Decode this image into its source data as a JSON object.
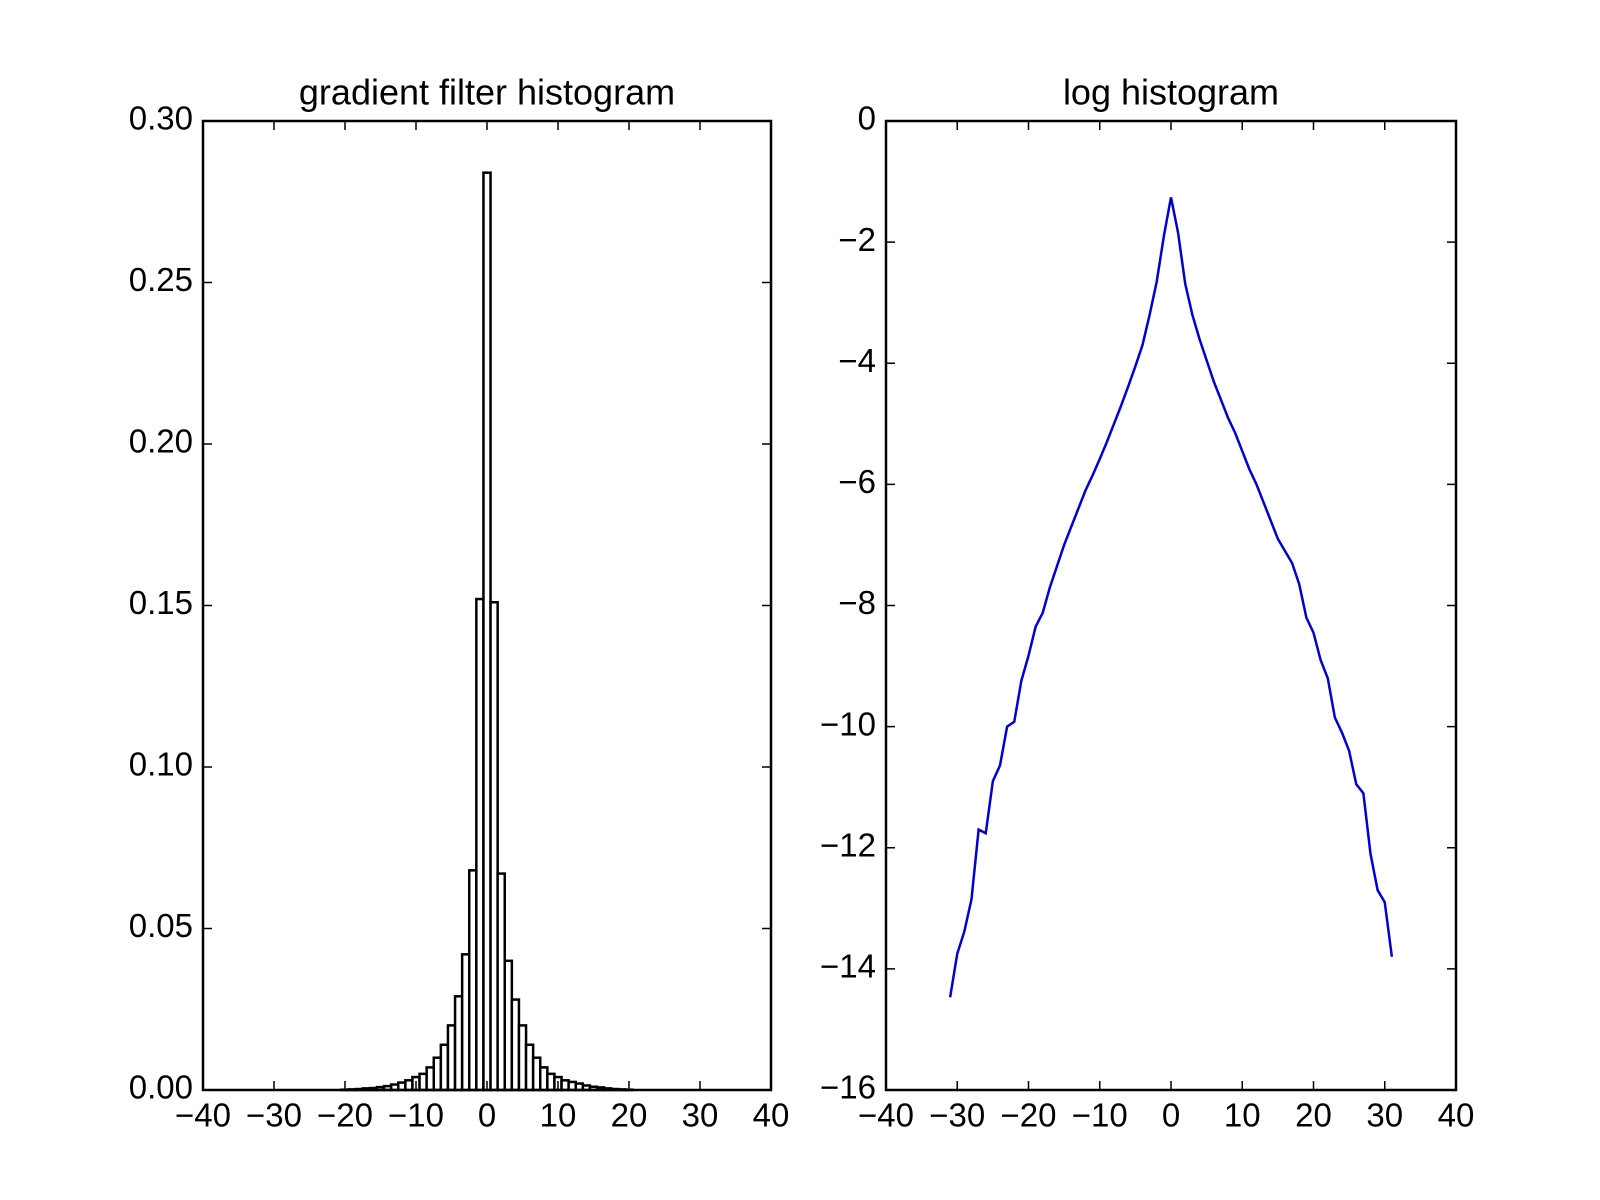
{
  "chart_data": [
    {
      "type": "histogram",
      "title": "gradient filter histogram",
      "color": "#ffffff",
      "edgecolor": "#000000",
      "bins": [
        -31.5,
        -30.5,
        -29.5,
        -28.5,
        -27.5,
        -26.5,
        -25.5,
        -24.5,
        -23.5,
        -22.5,
        -21.5,
        -20.5,
        -19.5,
        -18.5,
        -17.5,
        -16.5,
        -15.5,
        -14.5,
        -13.5,
        -12.5,
        -11.5,
        -10.5,
        -9.5,
        -8.5,
        -7.5,
        -6.5,
        -5.5,
        -4.5,
        -3.5,
        -2.5,
        -1.5,
        -0.5,
        0.5,
        1.5,
        2.5,
        3.5,
        4.5,
        5.5,
        6.5,
        7.5,
        8.5,
        9.5,
        10.5,
        11.5,
        12.5,
        13.5,
        14.5,
        15.5,
        16.5,
        17.5,
        18.5,
        19.5,
        20.5,
        21.5,
        22.5,
        23.5,
        24.5,
        25.5,
        26.5,
        27.5,
        28.5,
        29.5,
        30.5,
        31.5
      ],
      "values": [
        0,
        0,
        0,
        0,
        0,
        0,
        0,
        0,
        0,
        0,
        0,
        0.0001,
        0.0002,
        0.0003,
        0.0005,
        0.0006,
        0.0009,
        0.0012,
        0.0017,
        0.0023,
        0.003,
        0.004,
        0.005,
        0.007,
        0.01,
        0.014,
        0.02,
        0.029,
        0.042,
        0.068,
        0.152,
        0.284,
        0.151,
        0.067,
        0.04,
        0.028,
        0.02,
        0.014,
        0.01,
        0.007,
        0.005,
        0.004,
        0.003,
        0.0025,
        0.002,
        0.0014,
        0.001,
        0.0008,
        0.0005,
        0.0003,
        0.0002,
        0.0001,
        0,
        0,
        0,
        0,
        0,
        0,
        0,
        0,
        0,
        0,
        0
      ],
      "xlim": [
        -40,
        40
      ],
      "xticks": [
        {
          "value": -40,
          "label": "−40"
        },
        {
          "value": -30,
          "label": "−30"
        },
        {
          "value": -20,
          "label": "−20"
        },
        {
          "value": -10,
          "label": "−10"
        },
        0,
        10,
        20,
        30,
        40
      ],
      "ylim": [
        0,
        0.3
      ],
      "yticks": [
        {
          "value": 0,
          "label": "0.00"
        },
        {
          "value": 0.05,
          "label": "0.05"
        },
        {
          "value": 0.1,
          "label": "0.10"
        },
        {
          "value": 0.15,
          "label": "0.15"
        },
        {
          "value": 0.2,
          "label": "0.20"
        },
        {
          "value": 0.25,
          "label": "0.25"
        },
        {
          "value": 0.3,
          "label": "0.30"
        }
      ],
      "grid": false
    },
    {
      "type": "line",
      "title": "log histogram",
      "color": "#0000cc",
      "x": [
        -31,
        -30,
        -29,
        -28,
        -27,
        -26,
        -25,
        -24,
        -23,
        -22,
        -21,
        -20,
        -19,
        -18,
        -17,
        -16,
        -15,
        -14,
        -13,
        -12,
        -11,
        -10,
        -9,
        -8,
        -7,
        -6,
        -5,
        -4,
        -3,
        -2,
        -1,
        0,
        1,
        2,
        3,
        4,
        5,
        6,
        7,
        8,
        9,
        10,
        11,
        12,
        13,
        14,
        15,
        16,
        17,
        18,
        19,
        20,
        21,
        22,
        23,
        24,
        25,
        26,
        27,
        28,
        29,
        30,
        31
      ],
      "values": [
        -14.47,
        -13.75,
        -13.38,
        -12.85,
        -11.7,
        -11.76,
        -10.9,
        -10.64,
        -10,
        -9.92,
        -9.24,
        -8.83,
        -8.35,
        -8.12,
        -7.7,
        -7.35,
        -7,
        -6.7,
        -6.4,
        -6.1,
        -5.85,
        -5.58,
        -5.3,
        -5,
        -4.7,
        -4.38,
        -4.05,
        -3.7,
        -3.2,
        -2.65,
        -1.9,
        -1.26,
        -1.85,
        -2.69,
        -3.2,
        -3.6,
        -3.95,
        -4.3,
        -4.6,
        -4.9,
        -5.15,
        -5.45,
        -5.75,
        -6,
        -6.3,
        -6.6,
        -6.9,
        -7.1,
        -7.3,
        -7.65,
        -8.2,
        -8.45,
        -8.9,
        -9.2,
        -9.85,
        -10.1,
        -10.4,
        -10.95,
        -11.1,
        -12.1,
        -12.7,
        -12.9,
        -13.8
      ],
      "xlim": [
        -40,
        40
      ],
      "xticks": [
        {
          "value": -40,
          "label": "−40"
        },
        {
          "value": -30,
          "label": "−30"
        },
        {
          "value": -20,
          "label": "−20"
        },
        {
          "value": -10,
          "label": "−10"
        },
        0,
        10,
        20,
        30,
        40
      ],
      "ylim": [
        -16,
        0
      ],
      "yticks": [
        {
          "value": -16,
          "label": "−16"
        },
        {
          "value": -14,
          "label": "−14"
        },
        {
          "value": -12,
          "label": "−12"
        },
        {
          "value": -10,
          "label": "−10"
        },
        {
          "value": -8,
          "label": "−8"
        },
        {
          "value": -6,
          "label": "−6"
        },
        {
          "value": -4,
          "label": "−4"
        },
        {
          "value": -2,
          "label": "−2"
        },
        0
      ],
      "grid": false
    }
  ]
}
